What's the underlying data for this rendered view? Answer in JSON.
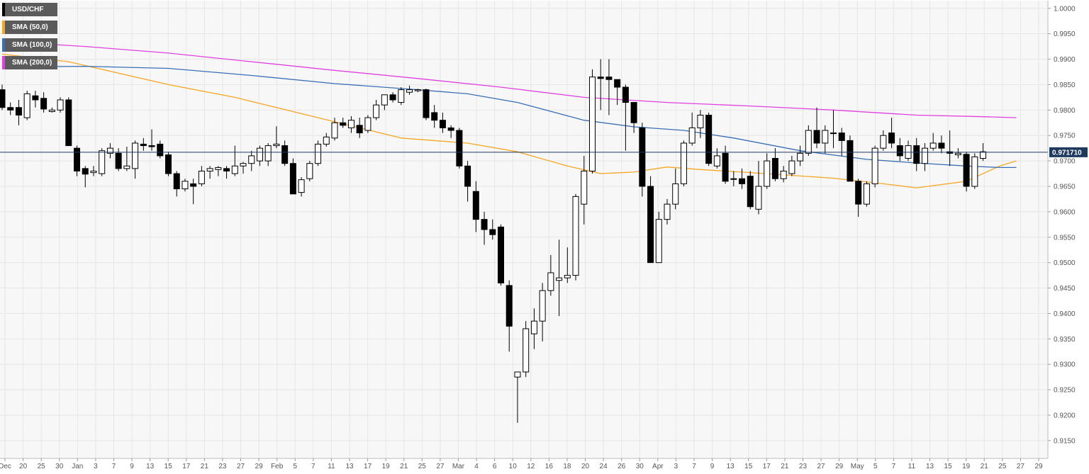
{
  "colors": {
    "background": "#f7f7f7",
    "grid": "#e6e6e6",
    "up_fill": "#ffffff",
    "down_fill": "#000000",
    "candle_stroke": "#000000",
    "current_line": "#1f3a5f",
    "price_tag_bg": "#1f3a5f"
  },
  "legend": [
    {
      "label": "USD/CHF",
      "color": "#000000"
    },
    {
      "label": "SMA (50,0)",
      "color": "#f5a623"
    },
    {
      "label": "SMA (100,0)",
      "color": "#3a6fb5"
    },
    {
      "label": "SMA (200,0)",
      "color": "#e040e0"
    }
  ],
  "chart_data": {
    "type": "candlestick",
    "title": "",
    "ylim": [
      0.9115,
      1.0015
    ],
    "y_ticks": [
      "0.9150",
      "0.9200",
      "0.9250",
      "0.9300",
      "0.9350",
      "0.9400",
      "0.9450",
      "0.9500",
      "0.9550",
      "0.9600",
      "0.9650",
      "0.9700",
      "0.9750",
      "0.9800",
      "0.9850",
      "0.9900",
      "0.9950",
      "1.0000"
    ],
    "x_ticks": [
      "Dec",
      "20",
      "25",
      "30",
      "Jan",
      "3",
      "7",
      "9",
      "13",
      "15",
      "17",
      "21",
      "23",
      "27",
      "29",
      "Feb",
      "5",
      "7",
      "11",
      "13",
      "17",
      "19",
      "21",
      "25",
      "27",
      "Mar",
      "4",
      "6",
      "10",
      "12",
      "16",
      "18",
      "20",
      "24",
      "26",
      "30",
      "Apr",
      "3",
      "7",
      "9",
      "13",
      "15",
      "17",
      "21",
      "23",
      "27",
      "29",
      "May",
      "5",
      "7",
      "11",
      "13",
      "15",
      "19",
      "21",
      "25",
      "27",
      "29"
    ],
    "current_price": 0.9717,
    "current_price_label": "0.971710",
    "candles": [
      {
        "o": 0.984,
        "h": 0.985,
        "l": 0.98,
        "c": 0.9805
      },
      {
        "o": 0.9805,
        "h": 0.9815,
        "l": 0.979,
        "c": 0.98
      },
      {
        "o": 0.9805,
        "h": 0.982,
        "l": 0.977,
        "c": 0.979
      },
      {
        "o": 0.9785,
        "h": 0.9838,
        "l": 0.978,
        "c": 0.9832
      },
      {
        "o": 0.9828,
        "h": 0.9838,
        "l": 0.9805,
        "c": 0.982
      },
      {
        "o": 0.9823,
        "h": 0.9835,
        "l": 0.9795,
        "c": 0.9802
      },
      {
        "o": 0.9797,
        "h": 0.9805,
        "l": 0.9795,
        "c": 0.98
      },
      {
        "o": 0.98,
        "h": 0.9825,
        "l": 0.9795,
        "c": 0.982
      },
      {
        "o": 0.982,
        "h": 0.9825,
        "l": 0.973,
        "c": 0.973
      },
      {
        "o": 0.9725,
        "h": 0.973,
        "l": 0.967,
        "c": 0.968
      },
      {
        "o": 0.9685,
        "h": 0.969,
        "l": 0.9648,
        "c": 0.9674
      },
      {
        "o": 0.9677,
        "h": 0.969,
        "l": 0.967,
        "c": 0.968
      },
      {
        "o": 0.9675,
        "h": 0.9725,
        "l": 0.967,
        "c": 0.972
      },
      {
        "o": 0.9715,
        "h": 0.9735,
        "l": 0.9705,
        "c": 0.9725
      },
      {
        "o": 0.9715,
        "h": 0.9725,
        "l": 0.968,
        "c": 0.9685
      },
      {
        "o": 0.9685,
        "h": 0.9728,
        "l": 0.968,
        "c": 0.969
      },
      {
        "o": 0.9685,
        "h": 0.974,
        "l": 0.9665,
        "c": 0.9735
      },
      {
        "o": 0.9733,
        "h": 0.9745,
        "l": 0.972,
        "c": 0.973
      },
      {
        "o": 0.973,
        "h": 0.9762,
        "l": 0.972,
        "c": 0.9728
      },
      {
        "o": 0.9733,
        "h": 0.974,
        "l": 0.9705,
        "c": 0.971
      },
      {
        "o": 0.9712,
        "h": 0.9718,
        "l": 0.967,
        "c": 0.9675
      },
      {
        "o": 0.9675,
        "h": 0.968,
        "l": 0.963,
        "c": 0.9645
      },
      {
        "o": 0.9645,
        "h": 0.9665,
        "l": 0.964,
        "c": 0.966
      },
      {
        "o": 0.9655,
        "h": 0.9665,
        "l": 0.9615,
        "c": 0.965
      },
      {
        "o": 0.9655,
        "h": 0.969,
        "l": 0.965,
        "c": 0.968
      },
      {
        "o": 0.968,
        "h": 0.969,
        "l": 0.9665,
        "c": 0.9685
      },
      {
        "o": 0.9683,
        "h": 0.969,
        "l": 0.967,
        "c": 0.9687
      },
      {
        "o": 0.9685,
        "h": 0.969,
        "l": 0.9665,
        "c": 0.968
      },
      {
        "o": 0.9675,
        "h": 0.973,
        "l": 0.967,
        "c": 0.969
      },
      {
        "o": 0.969,
        "h": 0.9698,
        "l": 0.9675,
        "c": 0.9695
      },
      {
        "o": 0.9695,
        "h": 0.972,
        "l": 0.968,
        "c": 0.971
      },
      {
        "o": 0.97,
        "h": 0.973,
        "l": 0.969,
        "c": 0.9725
      },
      {
        "o": 0.97,
        "h": 0.9735,
        "l": 0.969,
        "c": 0.973
      },
      {
        "o": 0.973,
        "h": 0.9768,
        "l": 0.9725,
        "c": 0.9733
      },
      {
        "o": 0.973,
        "h": 0.974,
        "l": 0.969,
        "c": 0.9695
      },
      {
        "o": 0.9695,
        "h": 0.9705,
        "l": 0.9635,
        "c": 0.9635
      },
      {
        "o": 0.9638,
        "h": 0.9668,
        "l": 0.963,
        "c": 0.9663
      },
      {
        "o": 0.9665,
        "h": 0.97,
        "l": 0.966,
        "c": 0.9695
      },
      {
        "o": 0.9695,
        "h": 0.974,
        "l": 0.969,
        "c": 0.9733
      },
      {
        "o": 0.9733,
        "h": 0.9755,
        "l": 0.9728,
        "c": 0.9747
      },
      {
        "o": 0.9745,
        "h": 0.9785,
        "l": 0.974,
        "c": 0.9775
      },
      {
        "o": 0.9775,
        "h": 0.9785,
        "l": 0.9765,
        "c": 0.977
      },
      {
        "o": 0.9765,
        "h": 0.9788,
        "l": 0.9755,
        "c": 0.978
      },
      {
        "o": 0.977,
        "h": 0.9785,
        "l": 0.9745,
        "c": 0.9755
      },
      {
        "o": 0.976,
        "h": 0.979,
        "l": 0.9755,
        "c": 0.9785
      },
      {
        "o": 0.9785,
        "h": 0.982,
        "l": 0.978,
        "c": 0.981
      },
      {
        "o": 0.981,
        "h": 0.983,
        "l": 0.98,
        "c": 0.983
      },
      {
        "o": 0.983,
        "h": 0.9835,
        "l": 0.9815,
        "c": 0.982
      },
      {
        "o": 0.9815,
        "h": 0.9845,
        "l": 0.981,
        "c": 0.984
      },
      {
        "o": 0.9835,
        "h": 0.9848,
        "l": 0.983,
        "c": 0.984
      },
      {
        "o": 0.9838,
        "h": 0.9842,
        "l": 0.9835,
        "c": 0.984
      },
      {
        "o": 0.984,
        "h": 0.9842,
        "l": 0.978,
        "c": 0.9785
      },
      {
        "o": 0.9795,
        "h": 0.981,
        "l": 0.9765,
        "c": 0.978
      },
      {
        "o": 0.978,
        "h": 0.9795,
        "l": 0.9755,
        "c": 0.9765
      },
      {
        "o": 0.9765,
        "h": 0.977,
        "l": 0.9745,
        "c": 0.976
      },
      {
        "o": 0.976,
        "h": 0.9765,
        "l": 0.9685,
        "c": 0.969
      },
      {
        "o": 0.969,
        "h": 0.97,
        "l": 0.962,
        "c": 0.965
      },
      {
        "o": 0.964,
        "h": 0.966,
        "l": 0.956,
        "c": 0.9585
      },
      {
        "o": 0.9585,
        "h": 0.96,
        "l": 0.9535,
        "c": 0.9565
      },
      {
        "o": 0.9565,
        "h": 0.9585,
        "l": 0.9545,
        "c": 0.9555
      },
      {
        "o": 0.957,
        "h": 0.9575,
        "l": 0.9455,
        "c": 0.946
      },
      {
        "o": 0.9455,
        "h": 0.9465,
        "l": 0.9325,
        "c": 0.9375
      },
      {
        "o": 0.9275,
        "h": 0.9285,
        "l": 0.9185,
        "c": 0.9285
      },
      {
        "o": 0.9285,
        "h": 0.9385,
        "l": 0.9275,
        "c": 0.937
      },
      {
        "o": 0.936,
        "h": 0.941,
        "l": 0.933,
        "c": 0.9385
      },
      {
        "o": 0.9385,
        "h": 0.946,
        "l": 0.9345,
        "c": 0.9445
      },
      {
        "o": 0.9445,
        "h": 0.9515,
        "l": 0.9435,
        "c": 0.948
      },
      {
        "o": 0.9465,
        "h": 0.9545,
        "l": 0.9395,
        "c": 0.947
      },
      {
        "o": 0.947,
        "h": 0.953,
        "l": 0.946,
        "c": 0.9475
      },
      {
        "o": 0.9475,
        "h": 0.9635,
        "l": 0.9465,
        "c": 0.963
      },
      {
        "o": 0.9615,
        "h": 0.971,
        "l": 0.9575,
        "c": 0.968
      },
      {
        "o": 0.968,
        "h": 0.988,
        "l": 0.9675,
        "c": 0.9865
      },
      {
        "o": 0.9865,
        "h": 0.99,
        "l": 0.98,
        "c": 0.9862
      },
      {
        "o": 0.9865,
        "h": 0.99,
        "l": 0.979,
        "c": 0.986
      },
      {
        "o": 0.986,
        "h": 0.986,
        "l": 0.981,
        "c": 0.9845
      },
      {
        "o": 0.9845,
        "h": 0.985,
        "l": 0.972,
        "c": 0.9815
      },
      {
        "o": 0.9815,
        "h": 0.9815,
        "l": 0.9755,
        "c": 0.9775
      },
      {
        "o": 0.9765,
        "h": 0.9775,
        "l": 0.963,
        "c": 0.965
      },
      {
        "o": 0.965,
        "h": 0.967,
        "l": 0.95,
        "c": 0.95
      },
      {
        "o": 0.95,
        "h": 0.96,
        "l": 0.95,
        "c": 0.9585
      },
      {
        "o": 0.9585,
        "h": 0.9625,
        "l": 0.9575,
        "c": 0.9615
      },
      {
        "o": 0.9615,
        "h": 0.9685,
        "l": 0.9605,
        "c": 0.9655
      },
      {
        "o": 0.9655,
        "h": 0.974,
        "l": 0.965,
        "c": 0.9735
      },
      {
        "o": 0.9735,
        "h": 0.9795,
        "l": 0.973,
        "c": 0.9765
      },
      {
        "o": 0.9765,
        "h": 0.98,
        "l": 0.9745,
        "c": 0.979
      },
      {
        "o": 0.979,
        "h": 0.9795,
        "l": 0.969,
        "c": 0.9695
      },
      {
        "o": 0.969,
        "h": 0.9725,
        "l": 0.9685,
        "c": 0.971
      },
      {
        "o": 0.9715,
        "h": 0.973,
        "l": 0.9655,
        "c": 0.966
      },
      {
        "o": 0.9665,
        "h": 0.968,
        "l": 0.965,
        "c": 0.9665
      },
      {
        "o": 0.9665,
        "h": 0.9685,
        "l": 0.9645,
        "c": 0.9655
      },
      {
        "o": 0.967,
        "h": 0.968,
        "l": 0.9605,
        "c": 0.961
      },
      {
        "o": 0.9605,
        "h": 0.97,
        "l": 0.9595,
        "c": 0.965
      },
      {
        "o": 0.965,
        "h": 0.9715,
        "l": 0.9645,
        "c": 0.97
      },
      {
        "o": 0.9705,
        "h": 0.9725,
        "l": 0.966,
        "c": 0.9665
      },
      {
        "o": 0.9665,
        "h": 0.969,
        "l": 0.9658,
        "c": 0.968
      },
      {
        "o": 0.9675,
        "h": 0.971,
        "l": 0.967,
        "c": 0.97
      },
      {
        "o": 0.97,
        "h": 0.973,
        "l": 0.969,
        "c": 0.9715
      },
      {
        "o": 0.9715,
        "h": 0.977,
        "l": 0.971,
        "c": 0.976
      },
      {
        "o": 0.976,
        "h": 0.9805,
        "l": 0.9725,
        "c": 0.9735
      },
      {
        "o": 0.9735,
        "h": 0.977,
        "l": 0.9715,
        "c": 0.976
      },
      {
        "o": 0.9755,
        "h": 0.98,
        "l": 0.9725,
        "c": 0.9755
      },
      {
        "o": 0.9755,
        "h": 0.9765,
        "l": 0.971,
        "c": 0.974
      },
      {
        "o": 0.974,
        "h": 0.975,
        "l": 0.966,
        "c": 0.966
      },
      {
        "o": 0.966,
        "h": 0.9665,
        "l": 0.959,
        "c": 0.9615
      },
      {
        "o": 0.9615,
        "h": 0.966,
        "l": 0.961,
        "c": 0.9655
      },
      {
        "o": 0.9655,
        "h": 0.973,
        "l": 0.9648,
        "c": 0.9725
      },
      {
        "o": 0.9725,
        "h": 0.976,
        "l": 0.972,
        "c": 0.975
      },
      {
        "o": 0.9755,
        "h": 0.9785,
        "l": 0.9725,
        "c": 0.9735
      },
      {
        "o": 0.973,
        "h": 0.9745,
        "l": 0.97,
        "c": 0.971
      },
      {
        "o": 0.9705,
        "h": 0.974,
        "l": 0.97,
        "c": 0.973
      },
      {
        "o": 0.973,
        "h": 0.9745,
        "l": 0.968,
        "c": 0.9695
      },
      {
        "o": 0.9695,
        "h": 0.9735,
        "l": 0.968,
        "c": 0.9725
      },
      {
        "o": 0.9725,
        "h": 0.9755,
        "l": 0.972,
        "c": 0.9735
      },
      {
        "o": 0.9735,
        "h": 0.975,
        "l": 0.9715,
        "c": 0.9725
      },
      {
        "o": 0.9718,
        "h": 0.976,
        "l": 0.969,
        "c": 0.9715
      },
      {
        "o": 0.9712,
        "h": 0.9725,
        "l": 0.9705,
        "c": 0.9715
      },
      {
        "o": 0.9713,
        "h": 0.9718,
        "l": 0.964,
        "c": 0.965
      },
      {
        "o": 0.965,
        "h": 0.9715,
        "l": 0.9645,
        "c": 0.9708
      },
      {
        "o": 0.9705,
        "h": 0.9735,
        "l": 0.97,
        "c": 0.9718
      }
    ],
    "sma": [
      {
        "name": "SMA (50,0)",
        "color": "#f5a623",
        "points": [
          [
            0,
            0.991
          ],
          [
            8,
            0.9895
          ],
          [
            20,
            0.985
          ],
          [
            28,
            0.9825
          ],
          [
            38,
            0.9785
          ],
          [
            48,
            0.9745
          ],
          [
            56,
            0.9735
          ],
          [
            62,
            0.9718
          ],
          [
            68,
            0.969
          ],
          [
            72,
            0.9675
          ],
          [
            76,
            0.9678
          ],
          [
            80,
            0.9688
          ],
          [
            84,
            0.9683
          ],
          [
            90,
            0.9677
          ],
          [
            100,
            0.9666
          ],
          [
            106,
            0.9655
          ],
          [
            110,
            0.9647
          ],
          [
            116,
            0.966
          ],
          [
            120,
            0.969
          ],
          [
            122,
            0.97
          ]
        ]
      },
      {
        "name": "SMA (100,0)",
        "color": "#3a6fb5",
        "points": [
          [
            0,
            0.9885
          ],
          [
            10,
            0.9886
          ],
          [
            20,
            0.9882
          ],
          [
            30,
            0.9868
          ],
          [
            40,
            0.9852
          ],
          [
            50,
            0.984
          ],
          [
            56,
            0.9832
          ],
          [
            62,
            0.9815
          ],
          [
            70,
            0.978
          ],
          [
            76,
            0.9767
          ],
          [
            82,
            0.976
          ],
          [
            88,
            0.9745
          ],
          [
            96,
            0.972
          ],
          [
            104,
            0.9703
          ],
          [
            110,
            0.9696
          ],
          [
            116,
            0.969
          ],
          [
            120,
            0.9687
          ],
          [
            122,
            0.9687
          ]
        ]
      },
      {
        "name": "SMA (200,0)",
        "color": "#e040e0",
        "points": [
          [
            0,
            0.9935
          ],
          [
            10,
            0.9925
          ],
          [
            20,
            0.9912
          ],
          [
            30,
            0.9895
          ],
          [
            40,
            0.9878
          ],
          [
            50,
            0.9862
          ],
          [
            60,
            0.9845
          ],
          [
            70,
            0.9825
          ],
          [
            80,
            0.9815
          ],
          [
            90,
            0.9808
          ],
          [
            100,
            0.98
          ],
          [
            110,
            0.979
          ],
          [
            118,
            0.9787
          ],
          [
            122,
            0.9785
          ]
        ]
      }
    ]
  }
}
